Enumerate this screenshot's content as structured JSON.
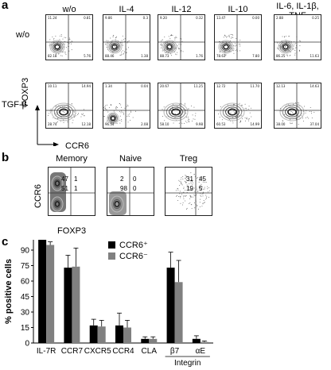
{
  "panel_a": {
    "letter": "a",
    "columns": [
      "w/o",
      "IL-4",
      "IL-12",
      "IL-10",
      "IL-6, IL-1β,\nTNF"
    ],
    "rows": [
      "w/o",
      "TGF-β"
    ],
    "y_axis": "FOXP3",
    "x_axis": "CCR6",
    "quadrants": [
      [
        {
          "tl": "11.24",
          "tr": "0.81",
          "bl": "82.18",
          "br": "5.76"
        },
        {
          "tl": "9.86",
          "tr": "0.3",
          "bl": "88.46",
          "br": "1.38"
        },
        {
          "tl": "9.20",
          "tr": "0.32",
          "bl": "88.73",
          "br": "1.76"
        },
        {
          "tl": "13.47",
          "tr": "0.00",
          "bl": "78.63",
          "br": "7.80"
        },
        {
          "tl": "2.88",
          "tr": "0.25",
          "bl": "86.25",
          "br": "11.63"
        }
      ],
      [
        {
          "tl": "10.11",
          "tr": "14.94",
          "bl": "28.74",
          "br": "12.18"
        },
        {
          "tl": "1.34",
          "tr": "0.04",
          "bl": "96.54",
          "br": "2.08"
        },
        {
          "tl": "20.67",
          "tr": "11.25",
          "bl": "58.10",
          "br": "9.98"
        },
        {
          "tl": "12.72",
          "tr": "11.70",
          "bl": "60.53",
          "br": "14.99"
        },
        {
          "tl": "12.13",
          "tr": "14.63",
          "bl": "38.00",
          "br": "37.04"
        }
      ]
    ]
  },
  "panel_b": {
    "letter": "b",
    "y_axis": "CCR6",
    "x_axis": "FOXP3",
    "plots": [
      {
        "title": "Memory",
        "tl": "47",
        "tr": "1",
        "bl": "51",
        "br": "1"
      },
      {
        "title": "Naive",
        "tl": "2",
        "tr": "0",
        "bl": "98",
        "br": "0"
      },
      {
        "title": "Treg",
        "tl": "31",
        "tr": "45",
        "bl": "19",
        "br": "5"
      }
    ]
  },
  "panel_c": {
    "letter": "c",
    "chart_data": {
      "type": "bar",
      "ylabel": "% positive cells",
      "ylim": [
        0,
        100
      ],
      "yticks": [
        0,
        15,
        30,
        45,
        60,
        75,
        90
      ],
      "categories": [
        "IL-7R",
        "CCR7",
        "CXCR5",
        "CCR4",
        "CLA",
        "β7",
        "αE"
      ],
      "group_label": "Integrin",
      "series": [
        {
          "name": "CCR6⁺",
          "color": "#000000",
          "values": [
            100,
            73,
            17,
            17,
            4,
            73,
            4
          ],
          "errors": [
            0,
            12,
            6,
            12,
            2,
            15,
            3
          ]
        },
        {
          "name": "CCR6⁻",
          "color": "#808080",
          "values": [
            95,
            74,
            16,
            15,
            4,
            59,
            1
          ],
          "errors": [
            3,
            18,
            6,
            7,
            2,
            21,
            1
          ]
        }
      ]
    }
  }
}
